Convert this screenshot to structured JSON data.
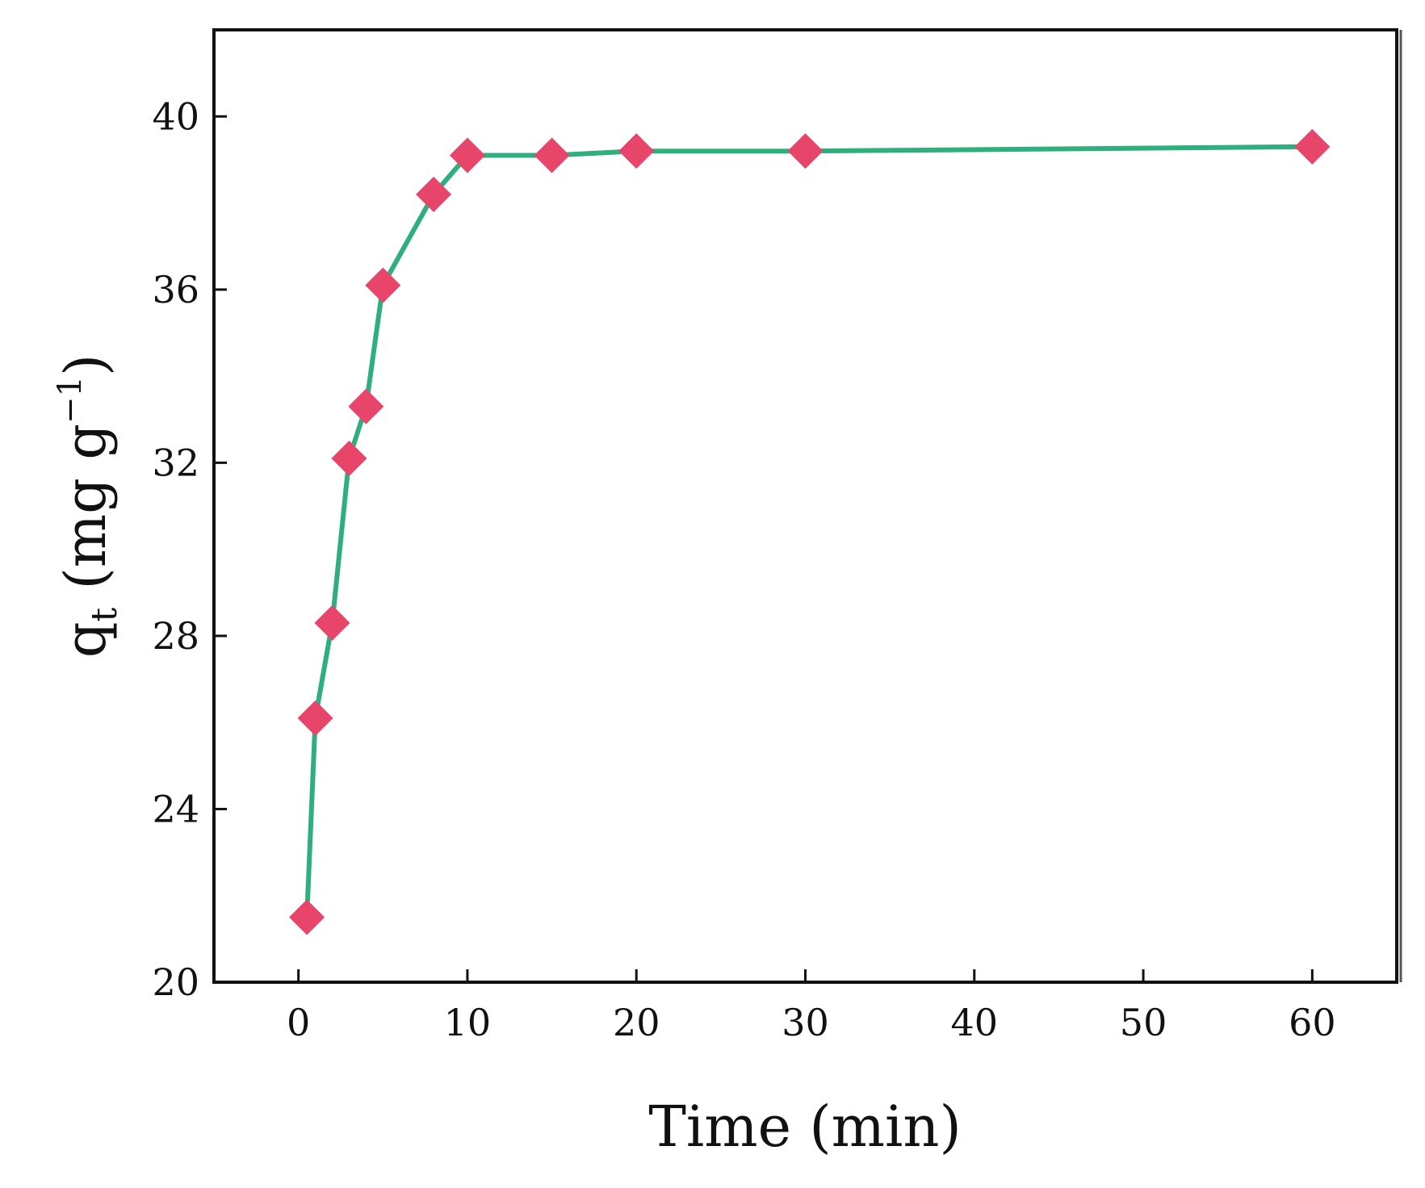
{
  "chart_data": {
    "type": "line",
    "title": "",
    "xlabel": "Time (min)",
    "ylabel": {
      "main": "q",
      "subscript": "t",
      "unit_open": " (mg g",
      "superscript": "−1",
      "unit_close": ")"
    },
    "xlim": [
      -5,
      65
    ],
    "ylim": [
      20,
      42
    ],
    "xticks": [
      0,
      10,
      20,
      30,
      40,
      50,
      60
    ],
    "yticks": [
      20,
      24,
      28,
      32,
      36,
      40
    ],
    "grid": false,
    "legend": "none",
    "series": [
      {
        "color": "#2eaf7d",
        "marker": "diamond",
        "marker_color": "#e8456b",
        "x": [
          0.5,
          1,
          2,
          3,
          4,
          5,
          8,
          10,
          15,
          20,
          30,
          60
        ],
        "y": [
          21.5,
          26.1,
          28.3,
          32.1,
          33.3,
          36.1,
          38.2,
          39.1,
          39.1,
          39.2,
          39.2,
          39.3
        ]
      }
    ]
  }
}
